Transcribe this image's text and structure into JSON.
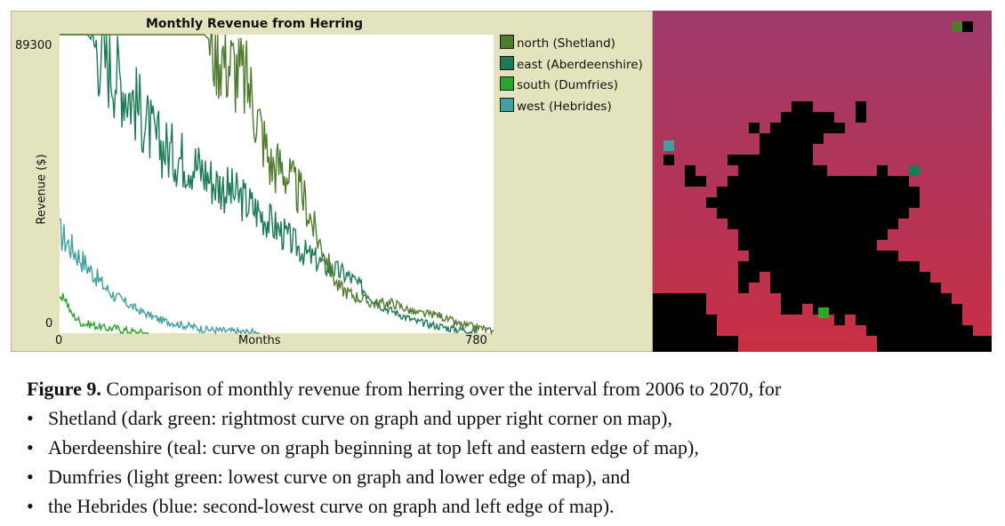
{
  "chart_data": {
    "type": "line",
    "title": "Monthly Revenue from Herring",
    "xlabel": "Months",
    "ylabel": "Revenue ($)",
    "xlim": [
      0,
      780
    ],
    "ylim": [
      0,
      89300
    ],
    "x_ticks": [
      "0",
      "780"
    ],
    "y_ticks": [
      "0",
      "89300"
    ],
    "legend_position": "right",
    "series": [
      {
        "name": "north (Shetland)",
        "color": "#4f7b2d",
        "x": [
          0,
          140,
          260,
          280,
          300,
          340,
          360,
          380,
          400,
          420,
          440,
          460,
          480,
          500,
          520,
          560,
          600,
          640,
          680,
          720,
          760,
          780
        ],
        "values": [
          89300,
          89300,
          89300,
          86000,
          82000,
          74000,
          62000,
          50000,
          50000,
          44000,
          40000,
          30000,
          22000,
          14000,
          12000,
          9000,
          9000,
          6000,
          5500,
          2500,
          1500,
          200
        ]
      },
      {
        "name": "east (Aberdeenshire)",
        "color": "#1c7a56",
        "x": [
          0,
          50,
          70,
          100,
          140,
          170,
          200,
          240,
          280,
          330,
          360,
          400,
          440,
          480,
          520,
          580,
          640,
          700,
          750
        ],
        "values": [
          89300,
          89300,
          85000,
          78000,
          68000,
          58000,
          54000,
          51000,
          45000,
          40000,
          36000,
          30000,
          24000,
          20000,
          17000,
          8000,
          3500,
          1500,
          500
        ]
      },
      {
        "name": "south (Dumfries)",
        "color": "#2aa82a",
        "x": [
          0,
          10,
          20,
          40,
          60,
          80,
          100,
          120,
          140,
          160
        ],
        "values": [
          9000,
          11000,
          6000,
          3000,
          2500,
          1500,
          1500,
          800,
          200,
          0
        ]
      },
      {
        "name": "west (Hebrides)",
        "color": "#44a0a0",
        "x": [
          0,
          20,
          40,
          60,
          80,
          100,
          140,
          180,
          220,
          260,
          300,
          360
        ],
        "values": [
          30000,
          26000,
          22000,
          18000,
          14000,
          11000,
          7000,
          4000,
          2500,
          1200,
          600,
          100
        ]
      }
    ]
  },
  "caption": {
    "label": "Figure 9.",
    "text": "Comparison of monthly revenue from herring over the interval from 2006 to 2070, for",
    "bullets": [
      "Shetland (dark green: rightmost curve on graph and upper right corner on map),",
      "Aberdeenshire (teal: curve on graph beginning at top left and eastern edge of map),",
      "Dumfries (light green: lowest curve on graph and lower edge of map), and",
      "the Hebrides (blue: second-lowest curve on graph and left edge of map)."
    ],
    "bullet_glyph": "•"
  },
  "map": {
    "colors": {
      "sea_top": "#a03a6a",
      "sea_bottom": "#c82e44",
      "land": "#000000"
    },
    "markers": [
      {
        "name": "north",
        "color": "#4f7b2d"
      },
      {
        "name": "east",
        "color": "#1c7a56"
      },
      {
        "name": "south",
        "color": "#2aa82a"
      },
      {
        "name": "west",
        "color": "#44a0a0"
      }
    ]
  }
}
